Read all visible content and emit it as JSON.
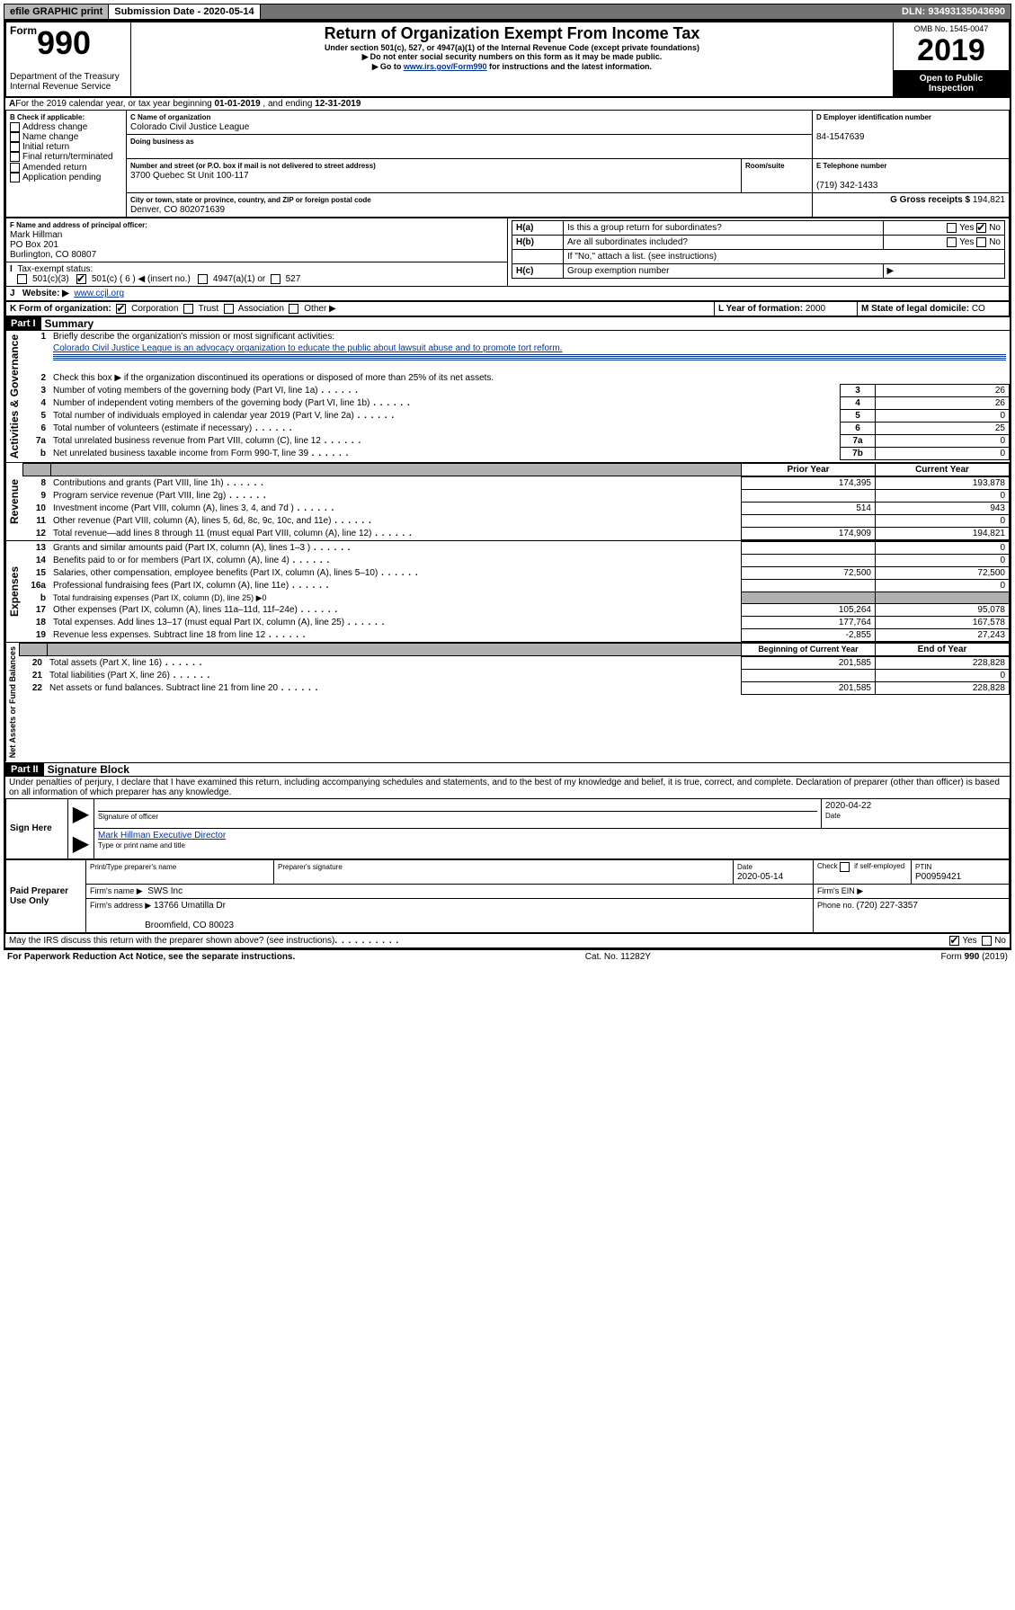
{
  "topbar": {
    "efile": "efile GRAPHIC print",
    "submission": "Submission Date - 2020-05-14",
    "dln": "DLN: 93493135043690"
  },
  "header": {
    "form_prefix": "Form",
    "form_number": "990",
    "title": "Return of Organization Exempt From Income Tax",
    "subtitle1": "Under section 501(c), 527, or 4947(a)(1) of the Internal Revenue Code (except private foundations)",
    "subtitle2": "Do not enter social security numbers on this form as it may be made public.",
    "subtitle3_pre": "Go to ",
    "subtitle3_link": "www.irs.gov/Form990",
    "subtitle3_post": " for instructions and the latest information.",
    "dept1": "Department of the Treasury",
    "dept2": "Internal Revenue Service",
    "omb": "OMB No. 1545-0047",
    "year": "2019",
    "open_public": "Open to Public Inspection"
  },
  "A": {
    "text_pre": "For the 2019 calendar year, or tax year beginning ",
    "begin": "01-01-2019",
    "mid": " , and ending ",
    "end": "12-31-2019"
  },
  "B": {
    "label": "B Check if applicable:",
    "items": [
      "Address change",
      "Name change",
      "Initial return",
      "Final return/terminated",
      "Amended return",
      "Application pending"
    ]
  },
  "C": {
    "name_label": "C Name of organization",
    "name": "Colorado Civil Justice League",
    "dba_label": "Doing business as",
    "dba": "",
    "street_label": "Number and street (or P.O. box if mail is not delivered to street address)",
    "street": "3700 Quebec St Unit 100-117",
    "room_label": "Room/suite",
    "city_label": "City or town, state or province, country, and ZIP or foreign postal code",
    "city": "Denver, CO  802071639"
  },
  "D": {
    "label": "D Employer identification number",
    "value": "84-1547639"
  },
  "E": {
    "label": "E Telephone number",
    "value": "(719) 342-1433"
  },
  "G": {
    "label": "G Gross receipts $ ",
    "value": "194,821"
  },
  "F": {
    "label": "F  Name and address of principal officer:",
    "name": "Mark Hillman",
    "po": "PO Box 201",
    "city": "Burlington, CO  80807"
  },
  "H": {
    "a": "Is this a group return for subordinates?",
    "b": "Are all subordinates included?",
    "b_note": "If \"No,\" attach a list. (see instructions)",
    "c": "Group exemption number"
  },
  "I": {
    "label": "Tax-exempt status:",
    "opt1": "501(c)(3)",
    "opt2_pre": "501(c) ( ",
    "opt2_num": "6",
    "opt2_post": " ) ◀ (insert no.)",
    "opt3": "4947(a)(1) or",
    "opt4": "527"
  },
  "J": {
    "label": "Website: ▶",
    "value": "www.ccjl.org"
  },
  "K": {
    "label": "K Form of organization:",
    "opts": [
      "Corporation",
      "Trust",
      "Association",
      "Other ▶"
    ]
  },
  "L": {
    "label": "L Year of formation: ",
    "value": "2000"
  },
  "M": {
    "label": "M State of legal domicile: ",
    "value": "CO"
  },
  "part1": {
    "header": "Part I",
    "title": "Summary",
    "q1": "Briefly describe the organization's mission or most significant activities:",
    "q1_ans": "Colorado Civil Justice League is an advocacy organization to educate the public about lawsuit abuse and to promote tort reform.",
    "q2": "Check this box ▶        if the organization discontinued its operations or disposed of more than 25% of its net assets.",
    "lines_gov": [
      {
        "n": "3",
        "t": "Number of voting members of the governing body (Part VI, line 1a)",
        "b": "3",
        "v": "26"
      },
      {
        "n": "4",
        "t": "Number of independent voting members of the governing body (Part VI, line 1b)",
        "b": "4",
        "v": "26"
      },
      {
        "n": "5",
        "t": "Total number of individuals employed in calendar year 2019 (Part V, line 2a)",
        "b": "5",
        "v": "0"
      },
      {
        "n": "6",
        "t": "Total number of volunteers (estimate if necessary)",
        "b": "6",
        "v": "25"
      },
      {
        "n": "7a",
        "t": "Total unrelated business revenue from Part VIII, column (C), line 12",
        "b": "7a",
        "v": "0"
      },
      {
        "n": "b",
        "t": "Net unrelated business taxable income from Form 990-T, line 39",
        "b": "7b",
        "v": "0"
      }
    ],
    "col_prior": "Prior Year",
    "col_current": "Current Year",
    "col_begin": "Beginning of Current Year",
    "col_end": "End of Year",
    "lines_rev": [
      {
        "n": "8",
        "t": "Contributions and grants (Part VIII, line 1h)",
        "p": "174,395",
        "c": "193,878"
      },
      {
        "n": "9",
        "t": "Program service revenue (Part VIII, line 2g)",
        "p": "",
        "c": "0"
      },
      {
        "n": "10",
        "t": "Investment income (Part VIII, column (A), lines 3, 4, and 7d )",
        "p": "514",
        "c": "943"
      },
      {
        "n": "11",
        "t": "Other revenue (Part VIII, column (A), lines 5, 6d, 8c, 9c, 10c, and 11e)",
        "p": "",
        "c": "0"
      },
      {
        "n": "12",
        "t": "Total revenue—add lines 8 through 11 (must equal Part VIII, column (A), line 12)",
        "p": "174,909",
        "c": "194,821"
      }
    ],
    "lines_exp": [
      {
        "n": "13",
        "t": "Grants and similar amounts paid (Part IX, column (A), lines 1–3 )",
        "p": "",
        "c": "0"
      },
      {
        "n": "14",
        "t": "Benefits paid to or for members (Part IX, column (A), line 4)",
        "p": "",
        "c": "0"
      },
      {
        "n": "15",
        "t": "Salaries, other compensation, employee benefits (Part IX, column (A), lines 5–10)",
        "p": "72,500",
        "c": "72,500"
      },
      {
        "n": "16a",
        "t": "Professional fundraising fees (Part IX, column (A), line 11e)",
        "p": "",
        "c": "0"
      },
      {
        "n": "b",
        "t": "Total fundraising expenses (Part IX, column (D), line 25) ▶0",
        "p": null,
        "c": null
      },
      {
        "n": "17",
        "t": "Other expenses (Part IX, column (A), lines 11a–11d, 11f–24e)",
        "p": "105,264",
        "c": "95,078"
      },
      {
        "n": "18",
        "t": "Total expenses. Add lines 13–17 (must equal Part IX, column (A), line 25)",
        "p": "177,764",
        "c": "167,578"
      },
      {
        "n": "19",
        "t": "Revenue less expenses. Subtract line 18 from line 12",
        "p": "-2,855",
        "c": "27,243"
      }
    ],
    "lines_net": [
      {
        "n": "20",
        "t": "Total assets (Part X, line 16)",
        "p": "201,585",
        "c": "228,828"
      },
      {
        "n": "21",
        "t": "Total liabilities (Part X, line 26)",
        "p": "",
        "c": "0"
      },
      {
        "n": "22",
        "t": "Net assets or fund balances. Subtract line 21 from line 20",
        "p": "201,585",
        "c": "228,828"
      }
    ],
    "vlabels": {
      "gov": "Activities & Governance",
      "rev": "Revenue",
      "exp": "Expenses",
      "net": "Net Assets or Fund Balances"
    }
  },
  "part2": {
    "header": "Part II",
    "title": "Signature Block",
    "perjury": "Under penalties of perjury, I declare that I have examined this return, including accompanying schedules and statements, and to the best of my knowledge and belief, it is true, correct, and complete. Declaration of preparer (other than officer) is based on all information of which preparer has any knowledge.",
    "sign_here": "Sign Here",
    "sig_officer": "Signature of officer",
    "sig_date": "2020-04-22",
    "sig_date_label": "Date",
    "sig_name": "Mark Hillman  Executive Director",
    "sig_name_label": "Type or print name and title",
    "paid": "Paid Preparer Use Only",
    "prep_name_label": "Print/Type preparer's name",
    "prep_sig_label": "Preparer's signature",
    "prep_date_label": "Date",
    "prep_date": "2020-05-14",
    "prep_check": "Check         if self-employed",
    "ptin_label": "PTIN",
    "ptin": "P00959421",
    "firm_name_label": "Firm's name    ▶",
    "firm_name": "SWS Inc",
    "firm_ein_label": "Firm's EIN ▶",
    "firm_addr_label": "Firm's address ▶",
    "firm_addr1": "13766 Umatilla Dr",
    "firm_addr2": "Broomfield, CO  80023",
    "firm_phone_label": "Phone no. ",
    "firm_phone": "(720) 227-3357",
    "discuss": "May the IRS discuss this return with the preparer shown above? (see instructions)"
  },
  "footer": {
    "left": "For Paperwork Reduction Act Notice, see the separate instructions.",
    "mid": "Cat. No. 11282Y",
    "right": "Form 990 (2019)"
  }
}
